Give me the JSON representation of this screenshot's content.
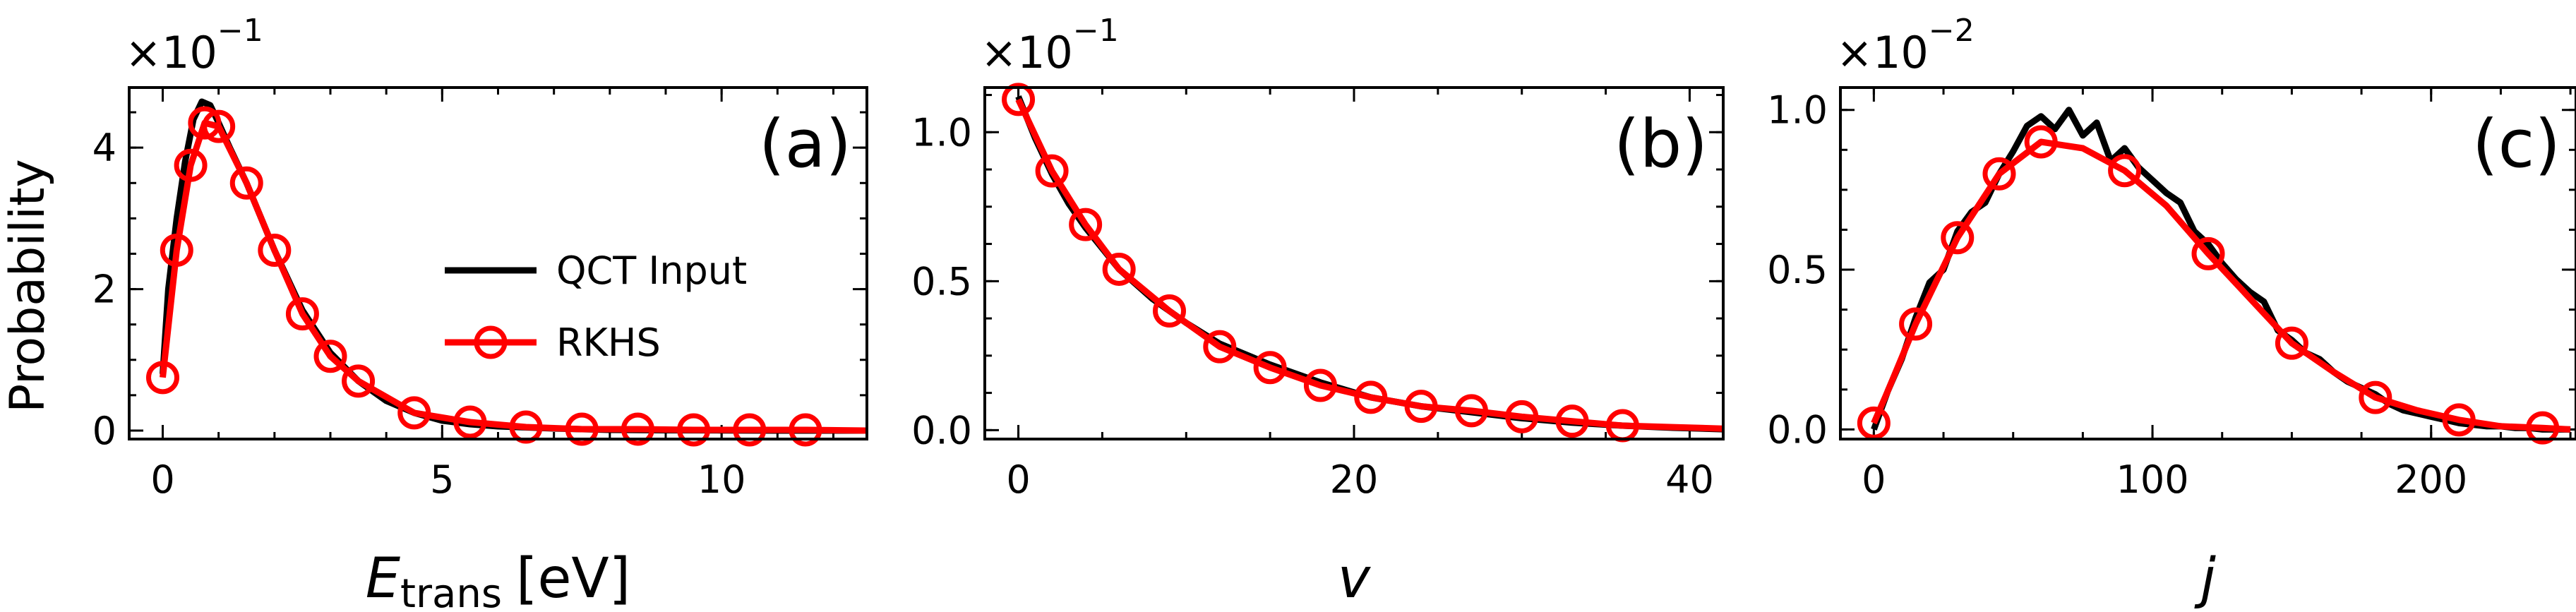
{
  "ylabel": "Probability",
  "legend": {
    "qct_label": "QCT Input",
    "rkhs_label": "RKHS",
    "qct_color": "#000000",
    "rkhs_color": "#ff0000",
    "placement": "center-right of panel (a)"
  },
  "chart_data": [
    {
      "type": "line",
      "panel_label": "(a)",
      "xlabel_main": "E",
      "xlabel_sub": "trans",
      "xlabel_units": "[eV]",
      "multiplier_base": "×10",
      "multiplier_exp": "−1",
      "xlim": [
        -0.6,
        12.6
      ],
      "ylim": [
        -0.12,
        4.85
      ],
      "xticks": [
        0,
        5,
        10
      ],
      "xtick_labels": [
        "0",
        "5",
        "10"
      ],
      "xminor_step": 1,
      "yticks": [
        0,
        2,
        4
      ],
      "ytick_labels": [
        "0",
        "2",
        "4"
      ],
      "yminor_step": 0.5,
      "series": [
        {
          "name": "QCT Input",
          "x": [
            0.0,
            0.1,
            0.25,
            0.4,
            0.55,
            0.7,
            0.85,
            1.0,
            1.2,
            1.5,
            2.0,
            2.5,
            3.0,
            3.5,
            4.0,
            4.5,
            5.0,
            5.5,
            6.0,
            7.0,
            8.0,
            9.0,
            10.0,
            11.0,
            12.6
          ],
          "y": [
            0.8,
            2.0,
            3.0,
            3.8,
            4.4,
            4.65,
            4.6,
            4.35,
            4.0,
            3.5,
            2.55,
            1.7,
            1.1,
            0.7,
            0.42,
            0.25,
            0.14,
            0.09,
            0.06,
            0.03,
            0.01,
            0.005,
            0.003,
            0.0,
            0.0
          ]
        },
        {
          "name": "RKHS",
          "x": [
            0.0,
            0.25,
            0.5,
            0.75,
            1.0,
            1.5,
            2.0,
            2.5,
            3.0,
            3.5,
            4.5,
            5.5,
            6.5,
            7.5,
            8.5,
            9.5,
            10.5,
            11.5,
            12.6
          ],
          "y": [
            0.75,
            2.55,
            3.75,
            4.35,
            4.3,
            3.5,
            2.55,
            1.65,
            1.05,
            0.7,
            0.25,
            0.12,
            0.05,
            0.02,
            0.02,
            0.01,
            0.01,
            0.01,
            0.0
          ],
          "markers": true
        }
      ]
    },
    {
      "type": "line",
      "panel_label": "(b)",
      "xlabel_main": "v",
      "xlabel_sub": "",
      "xlabel_units": "",
      "multiplier_base": "×10",
      "multiplier_exp": "−1",
      "xlim": [
        -2,
        42
      ],
      "ylim": [
        -0.03,
        1.15
      ],
      "xticks": [
        0,
        20,
        40
      ],
      "xtick_labels": [
        "0",
        "20",
        "40"
      ],
      "xminor_step": 5,
      "yticks": [
        0.0,
        0.5,
        1.0
      ],
      "ytick_labels": [
        "0.0",
        "0.5",
        "1.0"
      ],
      "yminor_step": 0.125,
      "series": [
        {
          "name": "QCT Input",
          "x": [
            0,
            1,
            2,
            3,
            4,
            5,
            6,
            8,
            10,
            12,
            15,
            18,
            21,
            24,
            27,
            30,
            33,
            36,
            39,
            42
          ],
          "y": [
            1.12,
            0.98,
            0.86,
            0.76,
            0.68,
            0.61,
            0.54,
            0.44,
            0.36,
            0.29,
            0.22,
            0.16,
            0.11,
            0.08,
            0.06,
            0.04,
            0.025,
            0.015,
            0.008,
            0.003
          ]
        },
        {
          "name": "RKHS",
          "x": [
            0,
            2,
            4,
            6,
            9,
            12,
            15,
            18,
            21,
            24,
            27,
            30,
            33,
            36,
            39,
            42
          ],
          "y": [
            1.11,
            0.87,
            0.69,
            0.54,
            0.4,
            0.28,
            0.21,
            0.15,
            0.11,
            0.08,
            0.065,
            0.045,
            0.03,
            0.015,
            0.01,
            0.005
          ],
          "markers_x": [
            0,
            2,
            4,
            6,
            9,
            12,
            15,
            18,
            21,
            24,
            27,
            30,
            33,
            36
          ]
        }
      ]
    },
    {
      "type": "line",
      "panel_label": "(c)",
      "xlabel_main": "j",
      "xlabel_sub": "",
      "xlabel_units": "",
      "multiplier_base": "×10",
      "multiplier_exp": "−2",
      "xlim": [
        -12,
        252
      ],
      "ylim": [
        -0.03,
        1.07
      ],
      "xticks": [
        0,
        100,
        200
      ],
      "xtick_labels": [
        "0",
        "100",
        "200"
      ],
      "xminor_step": 25,
      "yticks": [
        0.0,
        0.5,
        1.0
      ],
      "ytick_labels": [
        "0.0",
        "0.5",
        "1.0"
      ],
      "yminor_step": 0.125,
      "series": [
        {
          "name": "QCT Input",
          "x": [
            0,
            5,
            10,
            15,
            20,
            25,
            30,
            35,
            40,
            45,
            50,
            55,
            60,
            65,
            70,
            75,
            80,
            85,
            90,
            95,
            100,
            105,
            110,
            115,
            120,
            125,
            130,
            135,
            140,
            145,
            150,
            155,
            160,
            165,
            170,
            175,
            180,
            185,
            190,
            195,
            200,
            205,
            210,
            215,
            220,
            225,
            230,
            235,
            240,
            245,
            250
          ],
          "y": [
            0.0,
            0.12,
            0.22,
            0.35,
            0.46,
            0.5,
            0.62,
            0.68,
            0.71,
            0.8,
            0.87,
            0.95,
            0.98,
            0.94,
            1.0,
            0.92,
            0.96,
            0.84,
            0.88,
            0.82,
            0.78,
            0.74,
            0.71,
            0.62,
            0.58,
            0.52,
            0.47,
            0.43,
            0.4,
            0.31,
            0.28,
            0.24,
            0.22,
            0.18,
            0.15,
            0.13,
            0.11,
            0.08,
            0.06,
            0.05,
            0.04,
            0.03,
            0.02,
            0.015,
            0.01,
            0.01,
            0.005,
            0.005,
            0.0,
            0.0,
            0.0
          ]
        },
        {
          "name": "RKHS",
          "x": [
            0,
            5,
            15,
            30,
            45,
            60,
            75,
            90,
            105,
            120,
            135,
            150,
            165,
            180,
            195,
            210,
            225,
            240,
            250
          ],
          "y": [
            0.02,
            0.12,
            0.33,
            0.6,
            0.8,
            0.9,
            0.88,
            0.81,
            0.7,
            0.55,
            0.41,
            0.27,
            0.18,
            0.1,
            0.06,
            0.03,
            0.01,
            0.005,
            0.0
          ],
          "markers_x": [
            0,
            15,
            30,
            45,
            60,
            90,
            120,
            150,
            180,
            210,
            240
          ]
        }
      ]
    }
  ]
}
